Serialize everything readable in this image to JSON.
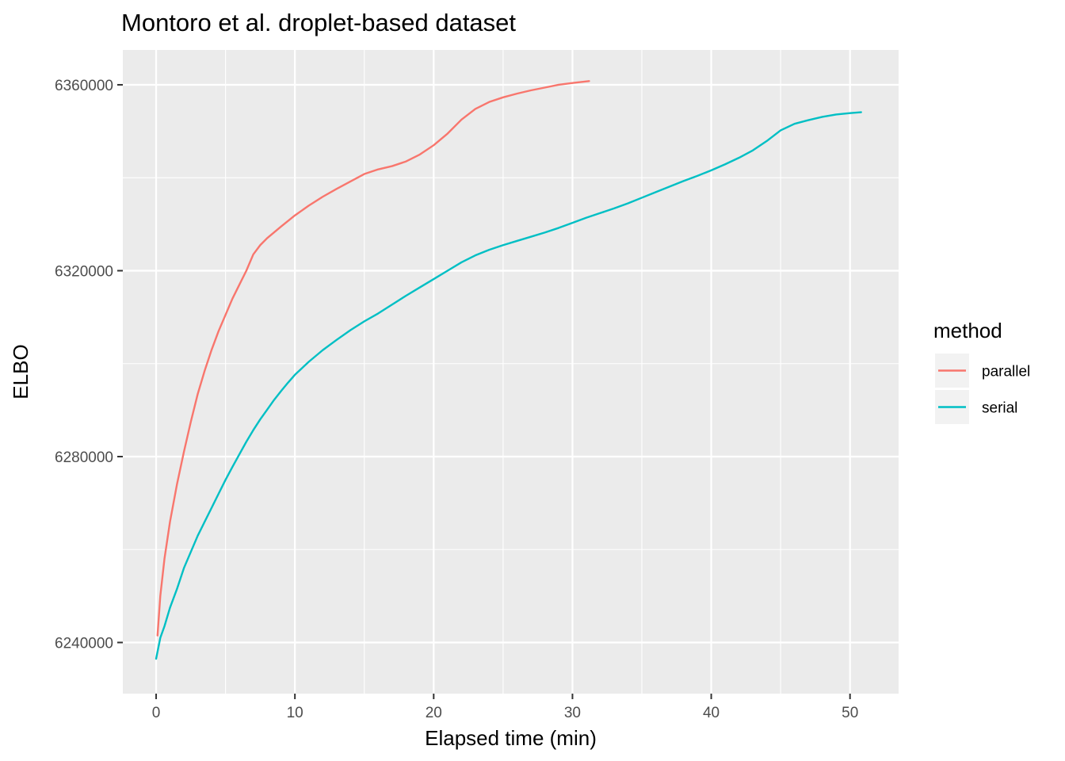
{
  "chart_data": {
    "type": "line",
    "title": "Montoro et al. droplet-based dataset",
    "xlabel": "Elapsed time (min)",
    "ylabel": "ELBO",
    "xlim": [
      -2.4,
      53.5
    ],
    "ylim": [
      6229000,
      6367500
    ],
    "x_ticks": [
      0,
      10,
      20,
      30,
      40,
      50
    ],
    "y_ticks": [
      6240000,
      6280000,
      6320000,
      6360000
    ],
    "grid": true,
    "legend": {
      "title": "method",
      "position": "right",
      "entries": [
        {
          "label": "parallel",
          "color": "#F8766D"
        },
        {
          "label": "serial",
          "color": "#00BFC4"
        }
      ]
    },
    "series": [
      {
        "name": "parallel",
        "color": "#F8766D",
        "points": [
          [
            0.1,
            6241500
          ],
          [
            0.3,
            6250000
          ],
          [
            0.6,
            6258000
          ],
          [
            1.0,
            6266000
          ],
          [
            1.5,
            6274000
          ],
          [
            2.0,
            6281000
          ],
          [
            2.5,
            6287500
          ],
          [
            3.0,
            6293500
          ],
          [
            3.5,
            6298500
          ],
          [
            4.0,
            6303000
          ],
          [
            4.5,
            6307000
          ],
          [
            5.0,
            6310500
          ],
          [
            5.5,
            6314000
          ],
          [
            6.0,
            6317000
          ],
          [
            6.5,
            6320000
          ],
          [
            7.0,
            6323500
          ],
          [
            7.5,
            6325500
          ],
          [
            8.0,
            6327000
          ],
          [
            9.0,
            6329500
          ],
          [
            10.0,
            6331900
          ],
          [
            11.0,
            6334000
          ],
          [
            12.0,
            6335900
          ],
          [
            13.0,
            6337600
          ],
          [
            14.0,
            6339200
          ],
          [
            15.0,
            6340800
          ],
          [
            16.0,
            6341800
          ],
          [
            17.0,
            6342500
          ],
          [
            18.0,
            6343500
          ],
          [
            19.0,
            6345000
          ],
          [
            20.0,
            6347000
          ],
          [
            21.0,
            6349500
          ],
          [
            22.0,
            6352500
          ],
          [
            23.0,
            6354800
          ],
          [
            24.0,
            6356300
          ],
          [
            25.0,
            6357300
          ],
          [
            26.0,
            6358100
          ],
          [
            27.0,
            6358800
          ],
          [
            28.0,
            6359400
          ],
          [
            29.0,
            6360000
          ],
          [
            30.0,
            6360400
          ],
          [
            31.2,
            6360800
          ]
        ]
      },
      {
        "name": "serial",
        "color": "#00BFC4",
        "points": [
          [
            0.0,
            6236500
          ],
          [
            0.3,
            6241000
          ],
          [
            0.6,
            6243500
          ],
          [
            1.0,
            6247500
          ],
          [
            1.5,
            6251500
          ],
          [
            2.0,
            6256000
          ],
          [
            2.5,
            6259500
          ],
          [
            3.0,
            6263000
          ],
          [
            3.5,
            6266000
          ],
          [
            4.0,
            6269000
          ],
          [
            4.5,
            6272000
          ],
          [
            5.0,
            6275000
          ],
          [
            5.5,
            6277800
          ],
          [
            6.0,
            6280500
          ],
          [
            6.5,
            6283200
          ],
          [
            7.0,
            6285700
          ],
          [
            7.5,
            6288000
          ],
          [
            8.0,
            6290100
          ],
          [
            8.5,
            6292200
          ],
          [
            9.0,
            6294100
          ],
          [
            9.5,
            6295900
          ],
          [
            10.0,
            6297600
          ],
          [
            11.0,
            6300400
          ],
          [
            12.0,
            6302900
          ],
          [
            13.0,
            6305100
          ],
          [
            14.0,
            6307200
          ],
          [
            15.0,
            6309100
          ],
          [
            16.0,
            6310800
          ],
          [
            17.0,
            6312700
          ],
          [
            18.0,
            6314600
          ],
          [
            19.0,
            6316400
          ],
          [
            20.0,
            6318200
          ],
          [
            21.0,
            6320000
          ],
          [
            22.0,
            6321800
          ],
          [
            23.0,
            6323300
          ],
          [
            24.0,
            6324500
          ],
          [
            25.0,
            6325500
          ],
          [
            26.0,
            6326400
          ],
          [
            27.0,
            6327300
          ],
          [
            28.0,
            6328200
          ],
          [
            29.0,
            6329200
          ],
          [
            30.0,
            6330300
          ],
          [
            31.0,
            6331400
          ],
          [
            32.0,
            6332400
          ],
          [
            33.0,
            6333400
          ],
          [
            34.0,
            6334500
          ],
          [
            35.0,
            6335700
          ],
          [
            36.0,
            6336900
          ],
          [
            37.0,
            6338100
          ],
          [
            38.0,
            6339300
          ],
          [
            39.0,
            6340400
          ],
          [
            40.0,
            6341600
          ],
          [
            41.0,
            6342900
          ],
          [
            42.0,
            6344300
          ],
          [
            43.0,
            6345900
          ],
          [
            44.0,
            6347900
          ],
          [
            45.0,
            6350200
          ],
          [
            46.0,
            6351600
          ],
          [
            47.0,
            6352400
          ],
          [
            48.0,
            6353100
          ],
          [
            49.0,
            6353600
          ],
          [
            50.0,
            6353900
          ],
          [
            50.8,
            6354100
          ]
        ]
      }
    ]
  }
}
